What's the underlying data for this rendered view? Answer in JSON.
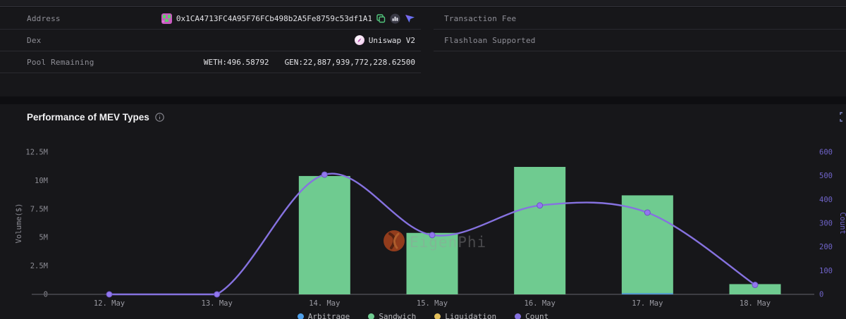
{
  "info_panel": {
    "left_rows": [
      {
        "label": "Address",
        "value": "0x1CA4713FC4A95F76FCb498b2A5Fe8759c53df1A1"
      },
      {
        "label": "Dex",
        "value": "Uniswap V2"
      },
      {
        "label": "Pool Remaining",
        "value_weth": "WETH:496.58792",
        "value_gen": "GEN:22,887,939,772,228.62500"
      }
    ],
    "right_rows": [
      {
        "label": "Transaction Fee",
        "value": ""
      },
      {
        "label": "Flashloan Supported",
        "value": ""
      }
    ]
  },
  "chart_section": {
    "title": "Performance of MEV Types",
    "watermark": "EigenPhi"
  },
  "chart_data": {
    "type": "bar+line",
    "categories": [
      "12. May",
      "13. May",
      "14. May",
      "15. May",
      "16. May",
      "17. May",
      "18. May"
    ],
    "series": [
      {
        "name": "Arbitrage",
        "type": "bar",
        "axis": "left",
        "color": "#4f9fe8",
        "values": [
          0,
          0,
          0,
          0,
          0,
          100000,
          0
        ]
      },
      {
        "name": "Sandwich",
        "type": "bar",
        "axis": "left",
        "color": "#6fcb90",
        "values": [
          0,
          0,
          10400000,
          5400000,
          11200000,
          8600000,
          900000
        ]
      },
      {
        "name": "Liquidation",
        "type": "bar",
        "axis": "left",
        "color": "#e3c05c",
        "values": [
          0,
          0,
          0,
          0,
          0,
          0,
          0
        ]
      },
      {
        "name": "Count",
        "type": "line",
        "axis": "right",
        "color": "#8672e0",
        "values": [
          0,
          0,
          505,
          250,
          375,
          345,
          40
        ]
      }
    ],
    "left_axis": {
      "label": "Volume($)",
      "ticks": [
        "0",
        "2.5M",
        "5M",
        "7.5M",
        "10M",
        "12.5M"
      ],
      "min": 0,
      "max": 12500000,
      "color": "#8b8b93"
    },
    "right_axis": {
      "label": "Count",
      "ticks": [
        "0",
        "100",
        "200",
        "300",
        "400",
        "500",
        "600"
      ],
      "min": 0,
      "max": 600,
      "color": "#6f63c8"
    },
    "legend": [
      {
        "label": "Arbitrage",
        "color": "#4f9fe8"
      },
      {
        "label": "Sandwich",
        "color": "#6fcb90"
      },
      {
        "label": "Liquidation",
        "color": "#e3c05c"
      },
      {
        "label": "Count",
        "color": "#8672e0"
      }
    ],
    "grid": false,
    "legend_position": "bottom"
  }
}
